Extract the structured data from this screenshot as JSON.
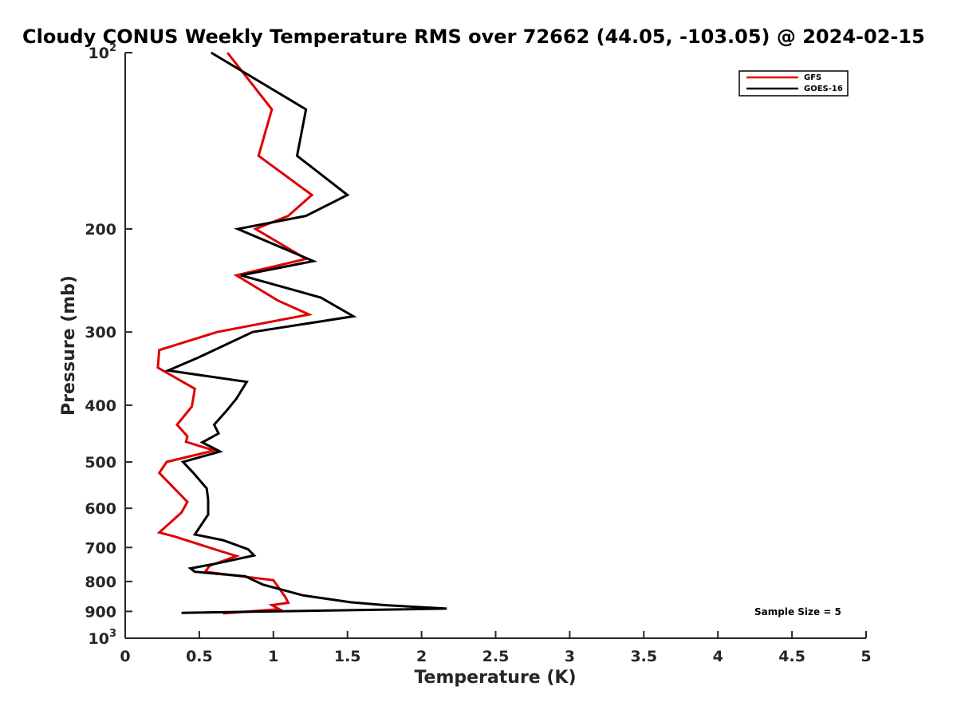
{
  "chart_data": {
    "type": "line",
    "title": "Cloudy CONUS Weekly Temperature RMS over 72662 (44.05, -103.05) @ 2024-02-15",
    "xlabel": "Temperature (K)",
    "ylabel": "Pressure (mb)",
    "xlim": [
      0,
      5
    ],
    "ylim": [
      100,
      1000
    ],
    "y_scale": "log",
    "y_reversed": true,
    "grid": false,
    "legend_position": "top-right",
    "x_ticks": [
      "0",
      "0.5",
      "1",
      "1.5",
      "2",
      "2.5",
      "3",
      "3.5",
      "4",
      "4.5",
      "5"
    ],
    "y_ticks": [
      {
        "value": 100,
        "base": "10",
        "exp": "2"
      },
      {
        "value": 200,
        "label": "200"
      },
      {
        "value": 300,
        "label": "300"
      },
      {
        "value": 400,
        "label": "400"
      },
      {
        "value": 500,
        "label": "500"
      },
      {
        "value": 600,
        "label": "600"
      },
      {
        "value": 700,
        "label": "700"
      },
      {
        "value": 800,
        "label": "800"
      },
      {
        "value": 900,
        "label": "900"
      },
      {
        "value": 1000,
        "base": "10",
        "exp": "3"
      }
    ],
    "series": [
      {
        "name": "GFS",
        "color": "#e00000",
        "points": [
          [
            0.69,
            100
          ],
          [
            0.99,
            125
          ],
          [
            0.9,
            150
          ],
          [
            1.26,
            175
          ],
          [
            1.1,
            190
          ],
          [
            0.88,
            200
          ],
          [
            1.22,
            225
          ],
          [
            0.75,
            240
          ],
          [
            1.03,
            265
          ],
          [
            1.24,
            280
          ],
          [
            0.62,
            300
          ],
          [
            0.23,
            322
          ],
          [
            0.22,
            345
          ],
          [
            0.47,
            375
          ],
          [
            0.45,
            402
          ],
          [
            0.35,
            432
          ],
          [
            0.42,
            452
          ],
          [
            0.41,
            462
          ],
          [
            0.6,
            478
          ],
          [
            0.28,
            500
          ],
          [
            0.23,
            522
          ],
          [
            0.42,
            585
          ],
          [
            0.38,
            610
          ],
          [
            0.23,
            660
          ],
          [
            0.33,
            670
          ],
          [
            0.62,
            707
          ],
          [
            0.75,
            724
          ],
          [
            0.57,
            752
          ],
          [
            0.54,
            770
          ],
          [
            1.0,
            796
          ],
          [
            1.08,
            850
          ],
          [
            1.1,
            870
          ],
          [
            0.99,
            878
          ],
          [
            1.04,
            892
          ],
          [
            0.66,
            907
          ]
        ]
      },
      {
        "name": "GOES-16",
        "color": "#000000",
        "points": [
          [
            0.58,
            100
          ],
          [
            1.22,
            125
          ],
          [
            1.16,
            150
          ],
          [
            1.5,
            175
          ],
          [
            1.22,
            190
          ],
          [
            0.76,
            200
          ],
          [
            1.27,
            227
          ],
          [
            0.78,
            240
          ],
          [
            1.32,
            262
          ],
          [
            1.54,
            282
          ],
          [
            0.86,
            300
          ],
          [
            0.49,
            332
          ],
          [
            0.29,
            349
          ],
          [
            0.82,
            365
          ],
          [
            0.75,
            390
          ],
          [
            0.68,
            410
          ],
          [
            0.6,
            432
          ],
          [
            0.63,
            447
          ],
          [
            0.52,
            463
          ],
          [
            0.64,
            480
          ],
          [
            0.39,
            500
          ],
          [
            0.46,
            522
          ],
          [
            0.55,
            555
          ],
          [
            0.56,
            580
          ],
          [
            0.56,
            615
          ],
          [
            0.47,
            665
          ],
          [
            0.66,
            680
          ],
          [
            0.83,
            705
          ],
          [
            0.87,
            722
          ],
          [
            0.62,
            745
          ],
          [
            0.44,
            760
          ],
          [
            0.47,
            770
          ],
          [
            0.81,
            784
          ],
          [
            0.93,
            810
          ],
          [
            1.2,
            845
          ],
          [
            1.52,
            868
          ],
          [
            1.75,
            878
          ],
          [
            2.17,
            890
          ],
          [
            0.38,
            905
          ]
        ]
      }
    ],
    "annotation": "Sample Size = 5"
  }
}
